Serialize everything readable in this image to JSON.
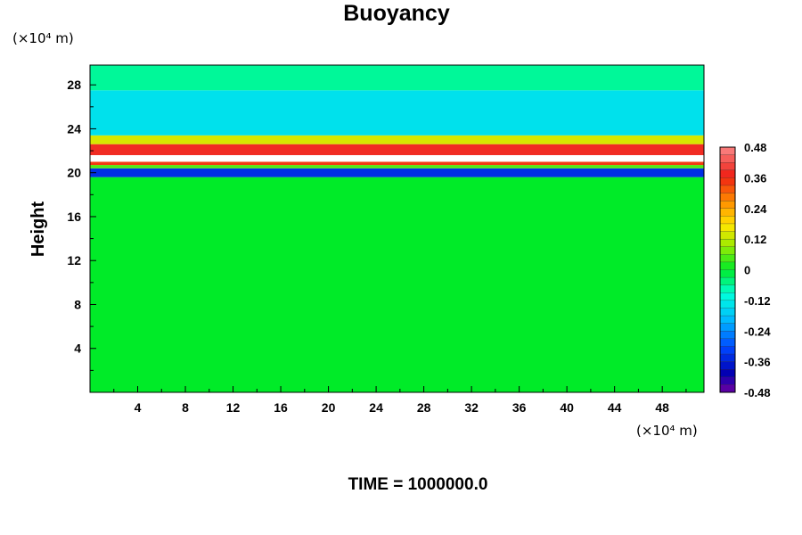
{
  "chart_data": {
    "type": "heatmap",
    "title": "Buoyancy",
    "xlabel": "",
    "ylabel": "Height",
    "x_unit_label": "(×10⁴ m)",
    "y_unit_label": "(×10⁴ m)",
    "xlim": [
      0,
      51.5
    ],
    "ylim": [
      0,
      29.8
    ],
    "x_ticks": [
      4,
      8,
      12,
      16,
      20,
      24,
      28,
      32,
      36,
      40,
      44,
      48
    ],
    "y_ticks": [
      4,
      8,
      12,
      16,
      20,
      24,
      28
    ],
    "colorbar": {
      "min": -0.48,
      "max": 0.48,
      "labels": [
        "0.48",
        "0.36",
        "0.24",
        "0.12",
        "0",
        "-0.12",
        "-0.24",
        "-0.36",
        "-0.48"
      ],
      "label_values": [
        0.48,
        0.36,
        0.24,
        0.12,
        0,
        -0.12,
        -0.24,
        -0.36,
        -0.48
      ],
      "levels": 32
    },
    "field_bands": [
      {
        "y_from": 0,
        "y_to": 19.6,
        "value": 0.0
      },
      {
        "y_from": 19.6,
        "y_to": 20.4,
        "value": -0.34
      },
      {
        "y_from": 20.4,
        "y_to": 20.7,
        "value": 0.05
      },
      {
        "y_from": 20.7,
        "y_to": 21.0,
        "value": 0.34
      },
      {
        "y_from": 21.0,
        "y_to": 21.6,
        "value": 0.6
      },
      {
        "y_from": 21.6,
        "y_to": 22.6,
        "value": 0.38
      },
      {
        "y_from": 22.6,
        "y_to": 23.4,
        "value": 0.14
      },
      {
        "y_from": 23.4,
        "y_to": 27.5,
        "value": -0.14
      },
      {
        "y_from": 27.5,
        "y_to": 29.8,
        "value": -0.06
      }
    ],
    "footer": "TIME = 1000000.0"
  },
  "colors": {
    "background": "#ffffff",
    "axis": "#000000",
    "saturated_above": "#ffffff"
  }
}
